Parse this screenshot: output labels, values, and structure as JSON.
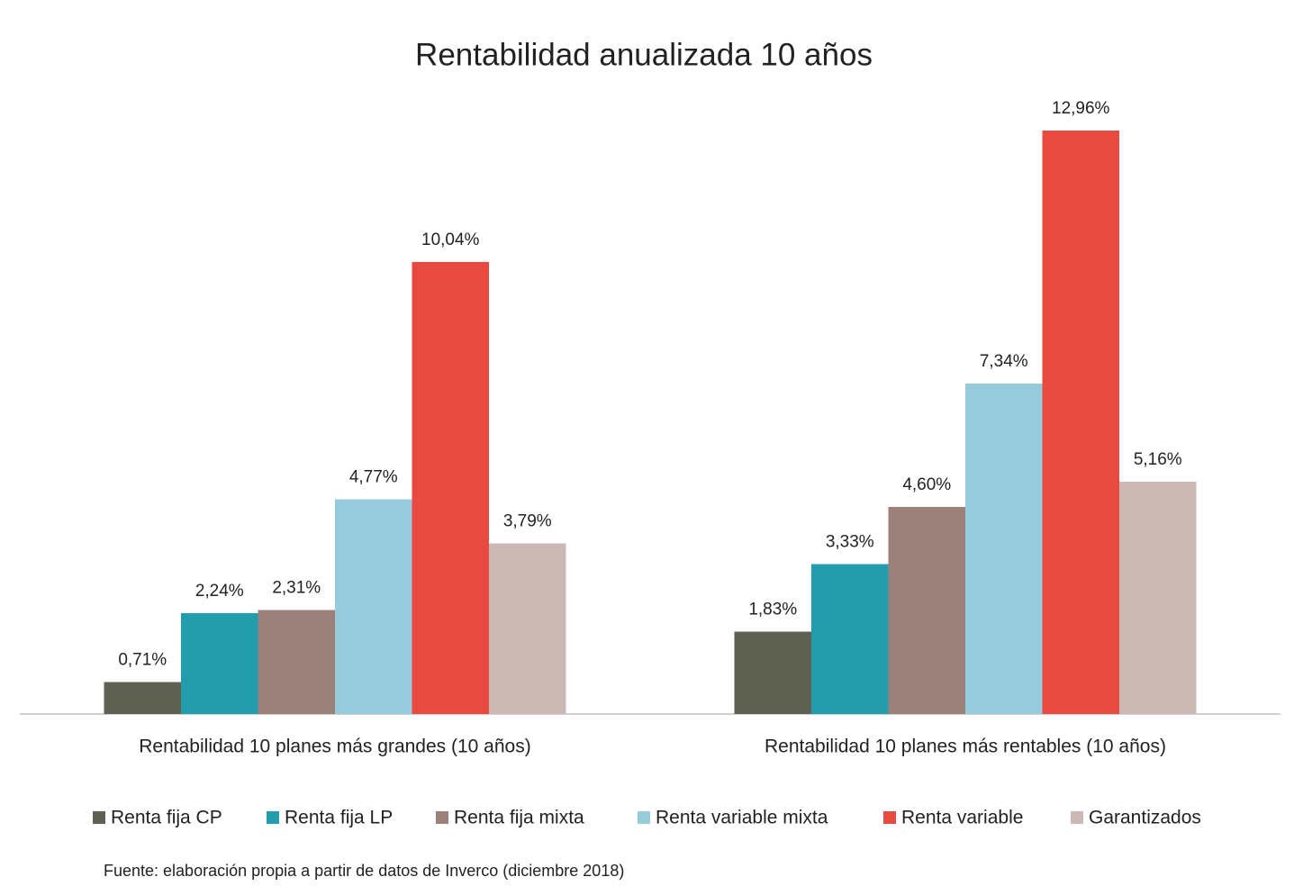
{
  "chart_data": {
    "type": "bar",
    "title": "Rentabilidad anualizada 10 años",
    "categories": [
      "Rentabilidad 10 planes más grandes (10 años)",
      "Rentabilidad 10 planes más rentables (10 años)"
    ],
    "series": [
      {
        "name": "Renta fija CP",
        "color": "#5f6253",
        "values": [
          0.71,
          1.83
        ],
        "value_labels": [
          "0,71%",
          "1,83%"
        ]
      },
      {
        "name": "Renta fija LP",
        "color": "#239cab",
        "values": [
          2.24,
          3.33
        ],
        "value_labels": [
          "2,24%",
          "3,33%"
        ]
      },
      {
        "name": "Renta fija mixta",
        "color": "#9c807a",
        "values": [
          2.31,
          4.6
        ],
        "value_labels": [
          "2,31%",
          "4,60%"
        ]
      },
      {
        "name": "Renta variable mixta",
        "color": "#97cbdb",
        "values": [
          4.77,
          7.34
        ],
        "value_labels": [
          "4,77%",
          "7,34%"
        ]
      },
      {
        "name": "Renta variable",
        "color": "#e84a3f",
        "values": [
          10.04,
          12.96
        ],
        "value_labels": [
          "10,04%",
          "12,96%"
        ]
      },
      {
        "name": "Garantizados",
        "color": "#ccb9b6",
        "values": [
          3.79,
          5.16
        ],
        "value_labels": [
          "3,79%",
          "5,16%"
        ]
      }
    ],
    "source": "Fuente: elaboración propia a partir de datos de Inverco (diciembre 2018)"
  }
}
